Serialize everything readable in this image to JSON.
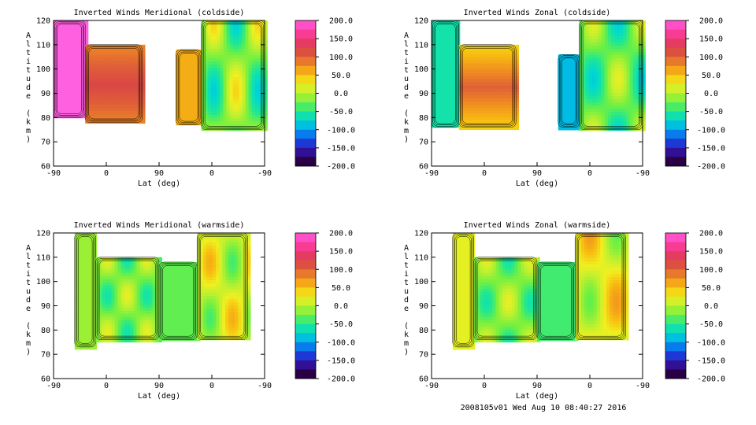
{
  "footer": "2008105v01 Wed Aug 10 08:40:27 2016",
  "chart_data": [
    {
      "type": "heatmap",
      "title": "Inverted Winds Meridional (coldside)",
      "xlabel": "Lat (deg)",
      "ylabel": "Altitude (km)",
      "x_ticks": [
        "-90",
        "0",
        "90",
        "0",
        "-90"
      ],
      "y_ticks": [
        "60",
        "70",
        "80",
        "90",
        "100",
        "110",
        "120"
      ],
      "ylim": [
        60,
        120
      ],
      "colorbar": {
        "labels": [
          "200.0",
          "150.0",
          "100.0",
          "50.0",
          "0.0",
          "-50.0",
          "-100.0",
          "-150.0",
          "-200.0"
        ],
        "range": [
          -200,
          200
        ]
      },
      "contour_lines": "black",
      "panel": "top-left"
    },
    {
      "type": "heatmap",
      "title": "Inverted Winds Zonal (coldside)",
      "xlabel": "Lat (deg)",
      "ylabel": "Altitude (km)",
      "x_ticks": [
        "-90",
        "0",
        "90",
        "0",
        "-90"
      ],
      "y_ticks": [
        "60",
        "70",
        "80",
        "90",
        "100",
        "110",
        "120"
      ],
      "ylim": [
        60,
        120
      ],
      "colorbar": {
        "labels": [
          "200.0",
          "150.0",
          "100.0",
          "50.0",
          "0.0",
          "-50.0",
          "-100.0",
          "-150.0",
          "-200.0"
        ],
        "range": [
          -200,
          200
        ]
      },
      "contour_lines": "black",
      "panel": "top-right"
    },
    {
      "type": "heatmap",
      "title": "Inverted Winds Meridional (warmside)",
      "xlabel": "Lat (deg)",
      "ylabel": "Altitude (km)",
      "x_ticks": [
        "-90",
        "0",
        "90",
        "0",
        "-90"
      ],
      "y_ticks": [
        "60",
        "70",
        "80",
        "90",
        "100",
        "110",
        "120"
      ],
      "ylim": [
        60,
        120
      ],
      "colorbar": {
        "labels": [
          "200.0",
          "150.0",
          "100.0",
          "50.0",
          "0.0",
          "-50.0",
          "-100.0",
          "-150.0",
          "-200.0"
        ],
        "range": [
          -200,
          200
        ]
      },
      "contour_lines": "black",
      "panel": "bottom-left"
    },
    {
      "type": "heatmap",
      "title": "Inverted Winds Zonal (warmside)",
      "xlabel": "Lat (deg)",
      "ylabel": "Altitude (km)",
      "x_ticks": [
        "-90",
        "0",
        "90",
        "0",
        "-90"
      ],
      "y_ticks": [
        "60",
        "70",
        "80",
        "90",
        "100",
        "110",
        "120"
      ],
      "ylim": [
        60,
        120
      ],
      "colorbar": {
        "labels": [
          "200.0",
          "150.0",
          "100.0",
          "50.0",
          "0.0",
          "-50.0",
          "-100.0",
          "-150.0",
          "-200.0"
        ],
        "range": [
          -200,
          200
        ]
      },
      "contour_lines": "black",
      "panel": "bottom-right"
    }
  ]
}
